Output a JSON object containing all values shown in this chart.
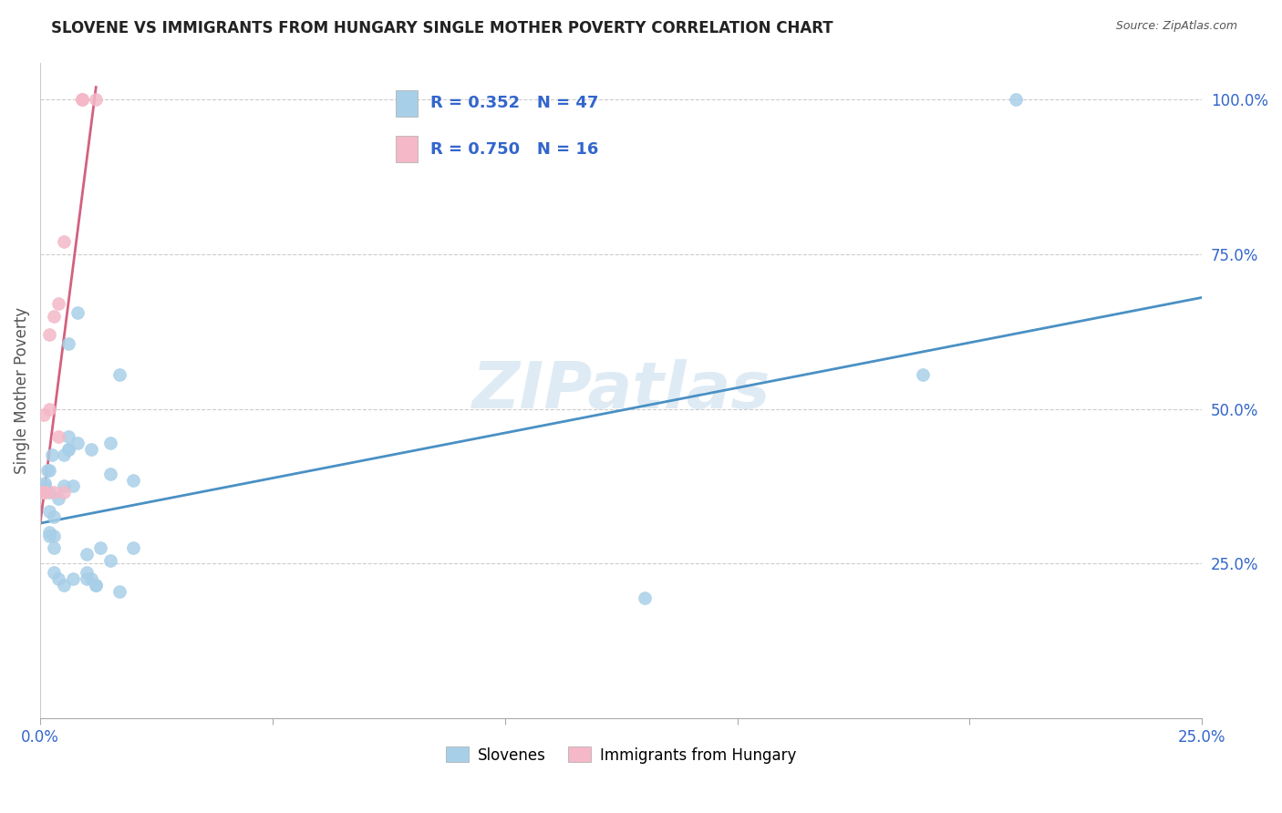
{
  "title": "SLOVENE VS IMMIGRANTS FROM HUNGARY SINGLE MOTHER POVERTY CORRELATION CHART",
  "source": "Source: ZipAtlas.com",
  "ylabel_label": "Single Mother Poverty",
  "legend_label1": "Slovenes",
  "legend_label2": "Immigrants from Hungary",
  "R1": 0.352,
  "N1": 47,
  "R2": 0.75,
  "N2": 16,
  "color_blue": "#a8cfe8",
  "color_pink": "#f4b8c8",
  "color_line_blue": "#4a90c4",
  "color_line_pink": "#d46080",
  "watermark": "ZIPatlas",
  "xlim": [
    0.0,
    0.25
  ],
  "ylim": [
    0.0,
    1.06
  ],
  "xticks": [
    0.0,
    0.05,
    0.1,
    0.15,
    0.2,
    0.25
  ],
  "xticklabels": [
    "0.0%",
    "",
    "",
    "",
    "",
    "25.0%"
  ],
  "yticks": [
    0.25,
    0.5,
    0.75,
    1.0
  ],
  "yticklabels": [
    "25.0%",
    "50.0%",
    "75.0%",
    "100.0%"
  ],
  "blue_scatter_x": [
    0.0005,
    0.0007,
    0.001,
    0.001,
    0.001,
    0.0015,
    0.002,
    0.002,
    0.002,
    0.002,
    0.002,
    0.0025,
    0.003,
    0.003,
    0.003,
    0.003,
    0.004,
    0.004,
    0.005,
    0.005,
    0.005,
    0.006,
    0.006,
    0.006,
    0.006,
    0.007,
    0.007,
    0.008,
    0.008,
    0.01,
    0.01,
    0.01,
    0.011,
    0.011,
    0.012,
    0.012,
    0.013,
    0.015,
    0.015,
    0.015,
    0.017,
    0.017,
    0.02,
    0.02,
    0.13,
    0.19,
    0.21
  ],
  "blue_scatter_y": [
    0.365,
    0.365,
    0.37,
    0.375,
    0.38,
    0.4,
    0.295,
    0.3,
    0.335,
    0.365,
    0.4,
    0.425,
    0.235,
    0.275,
    0.295,
    0.325,
    0.225,
    0.355,
    0.215,
    0.375,
    0.425,
    0.435,
    0.435,
    0.455,
    0.605,
    0.225,
    0.375,
    0.445,
    0.655,
    0.235,
    0.225,
    0.265,
    0.225,
    0.435,
    0.215,
    0.215,
    0.275,
    0.255,
    0.395,
    0.445,
    0.205,
    0.555,
    0.275,
    0.385,
    0.195,
    0.555,
    1.0
  ],
  "pink_scatter_x": [
    0.0004,
    0.0008,
    0.001,
    0.001,
    0.002,
    0.002,
    0.003,
    0.003,
    0.004,
    0.004,
    0.005,
    0.005,
    0.009,
    0.009,
    0.009,
    0.012
  ],
  "pink_scatter_y": [
    0.365,
    0.49,
    0.365,
    0.365,
    0.5,
    0.62,
    0.365,
    0.65,
    0.67,
    0.455,
    0.365,
    0.77,
    1.0,
    1.0,
    1.0,
    1.0
  ],
  "blue_line_x": [
    0.0,
    0.25
  ],
  "blue_line_y": [
    0.315,
    0.68
  ],
  "pink_line_x": [
    0.0,
    0.012
  ],
  "pink_line_y": [
    0.315,
    1.02
  ]
}
